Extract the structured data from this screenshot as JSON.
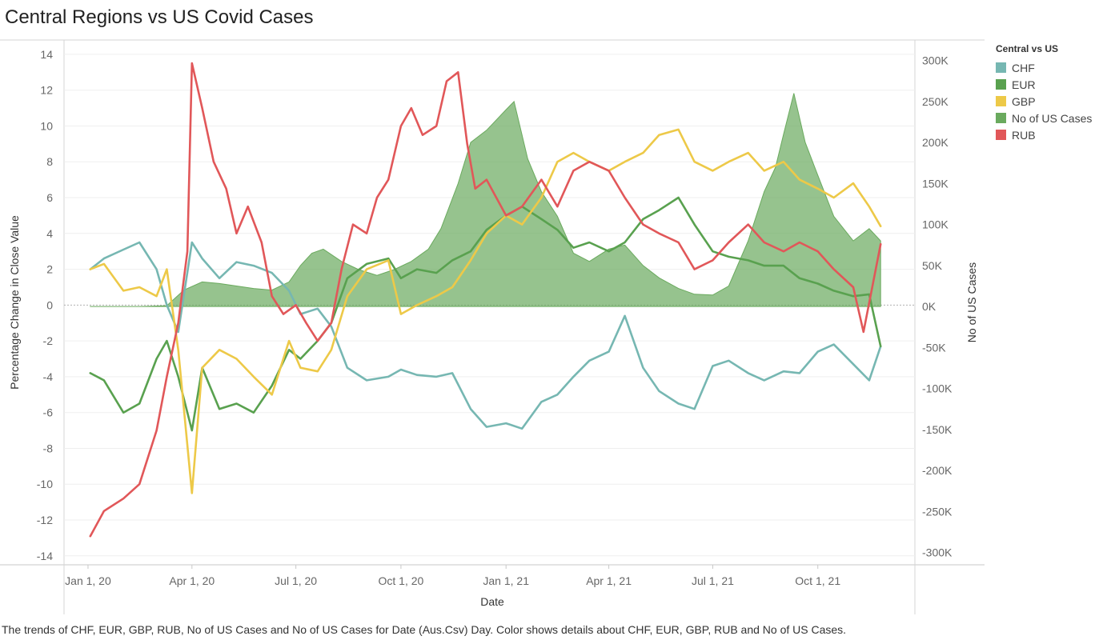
{
  "title": "Central Regions vs US Covid Cases",
  "caption": "The trends of CHF, EUR, GBP, RUB, No of US Cases and No of US Cases for Date (Aus.Csv) Day.  Color shows details about CHF, EUR, GBP, RUB and No of US Cases.",
  "legend": {
    "title": "Central vs US",
    "items": [
      {
        "label": "CHF",
        "color": "#76b7b2"
      },
      {
        "label": "EUR",
        "color": "#59a14f"
      },
      {
        "label": "GBP",
        "color": "#edc948"
      },
      {
        "label": "No of US Cases",
        "color": "#6aaa5e"
      },
      {
        "label": "RUB",
        "color": "#e15759"
      }
    ]
  },
  "chart_data": {
    "type": "line",
    "xlabel": "Date",
    "ylabel": "Percentage Change in Close Value",
    "y2label": "No of US Cases",
    "x_ticks": [
      "Jan 1, 20",
      "Apr 1, 20",
      "Jul 1, 20",
      "Oct 1, 20",
      "Jan 1, 21",
      "Apr 1, 21",
      "Jul 1, 21",
      "Oct 1, 21"
    ],
    "y_ticks": [
      "14",
      "12",
      "10",
      "8",
      "6",
      "4",
      "2",
      "0",
      "-2",
      "-4",
      "-6",
      "-8",
      "-10",
      "-12",
      "-14"
    ],
    "y2_ticks": [
      "300K",
      "250K",
      "200K",
      "150K",
      "100K",
      "50K",
      "0K",
      "-50K",
      "-100K",
      "-150K",
      "-200K",
      "-250K",
      "-300K"
    ],
    "ylim": [
      -14.5,
      14.8
    ],
    "y2lim": [
      -315000,
      325000
    ],
    "xlim": [
      "2019-12-11",
      "2021-12-25"
    ],
    "series": [
      {
        "name": "CHF",
        "axis": "left",
        "color": "#76b7b2",
        "x": [
          "2020-01-03",
          "2020-01-15",
          "2020-02-01",
          "2020-02-15",
          "2020-03-01",
          "2020-03-10",
          "2020-03-20",
          "2020-04-01",
          "2020-04-10",
          "2020-04-25",
          "2020-05-10",
          "2020-05-25",
          "2020-06-10",
          "2020-06-25",
          "2020-07-05",
          "2020-07-20",
          "2020-08-01",
          "2020-08-15",
          "2020-09-01",
          "2020-09-20",
          "2020-10-01",
          "2020-10-15",
          "2020-11-01",
          "2020-11-15",
          "2020-12-01",
          "2020-12-15",
          "2021-01-01",
          "2021-01-15",
          "2021-02-01",
          "2021-02-15",
          "2021-03-01",
          "2021-03-15",
          "2021-04-01",
          "2021-04-15",
          "2021-05-01",
          "2021-05-15",
          "2021-06-01",
          "2021-06-15",
          "2021-07-01",
          "2021-07-15",
          "2021-08-01",
          "2021-08-15",
          "2021-09-01",
          "2021-09-15",
          "2021-10-01",
          "2021-10-15",
          "2021-11-01",
          "2021-11-15",
          "2021-11-25"
        ],
        "values": [
          2.0,
          2.6,
          3.1,
          3.5,
          2.0,
          0.0,
          -1.5,
          3.5,
          2.6,
          1.5,
          2.4,
          2.2,
          1.8,
          0.8,
          -0.5,
          -0.2,
          -1.2,
          -3.5,
          -4.2,
          -4.0,
          -3.6,
          -3.9,
          -4.0,
          -3.8,
          -5.8,
          -6.8,
          -6.6,
          -6.9,
          -5.4,
          -5.0,
          -4.0,
          -3.1,
          -2.6,
          -0.6,
          -3.5,
          -4.8,
          -5.5,
          -5.8,
          -3.4,
          -3.1,
          -3.8,
          -4.2,
          -3.7,
          -3.8,
          -2.6,
          -2.2,
          -3.3,
          -4.2,
          -2.3
        ]
      },
      {
        "name": "EUR",
        "axis": "left",
        "color": "#59a14f",
        "x": [
          "2020-01-03",
          "2020-01-15",
          "2020-02-01",
          "2020-02-15",
          "2020-03-01",
          "2020-03-10",
          "2020-03-20",
          "2020-04-01",
          "2020-04-10",
          "2020-04-25",
          "2020-05-10",
          "2020-05-25",
          "2020-06-10",
          "2020-06-25",
          "2020-07-05",
          "2020-07-20",
          "2020-08-01",
          "2020-08-15",
          "2020-09-01",
          "2020-09-20",
          "2020-10-01",
          "2020-10-15",
          "2020-11-01",
          "2020-11-15",
          "2020-12-01",
          "2020-12-15",
          "2021-01-01",
          "2021-01-15",
          "2021-02-01",
          "2021-02-15",
          "2021-03-01",
          "2021-03-15",
          "2021-04-01",
          "2021-04-15",
          "2021-05-01",
          "2021-05-15",
          "2021-06-01",
          "2021-06-15",
          "2021-07-01",
          "2021-07-15",
          "2021-08-01",
          "2021-08-15",
          "2021-09-01",
          "2021-09-15",
          "2021-10-01",
          "2021-10-15",
          "2021-11-01",
          "2021-11-15",
          "2021-11-25"
        ],
        "values": [
          -3.8,
          -4.2,
          -6.0,
          -5.5,
          -3.0,
          -2.0,
          -4.0,
          -7.0,
          -3.5,
          -5.8,
          -5.5,
          -6.0,
          -4.5,
          -2.5,
          -3.0,
          -2.0,
          -1.0,
          1.5,
          2.3,
          2.6,
          1.5,
          2.0,
          1.8,
          2.5,
          3.0,
          4.2,
          5.0,
          5.5,
          4.8,
          4.2,
          3.2,
          3.5,
          3.0,
          3.5,
          4.8,
          5.3,
          6.0,
          4.5,
          3.0,
          2.7,
          2.5,
          2.2,
          2.2,
          1.5,
          1.2,
          0.8,
          0.5,
          0.6,
          -2.3
        ]
      },
      {
        "name": "GBP",
        "axis": "left",
        "color": "#edc948",
        "x": [
          "2020-01-03",
          "2020-01-15",
          "2020-02-01",
          "2020-02-15",
          "2020-03-01",
          "2020-03-10",
          "2020-03-20",
          "2020-04-01",
          "2020-04-10",
          "2020-04-25",
          "2020-05-10",
          "2020-05-25",
          "2020-06-10",
          "2020-06-25",
          "2020-07-05",
          "2020-07-20",
          "2020-08-01",
          "2020-08-15",
          "2020-09-01",
          "2020-09-20",
          "2020-10-01",
          "2020-10-15",
          "2020-11-01",
          "2020-11-15",
          "2020-12-01",
          "2020-12-15",
          "2021-01-01",
          "2021-01-15",
          "2021-02-01",
          "2021-02-15",
          "2021-03-01",
          "2021-03-15",
          "2021-04-01",
          "2021-04-15",
          "2021-05-01",
          "2021-05-15",
          "2021-06-01",
          "2021-06-15",
          "2021-07-01",
          "2021-07-15",
          "2021-08-01",
          "2021-08-15",
          "2021-09-01",
          "2021-09-15",
          "2021-10-01",
          "2021-10-15",
          "2021-11-01",
          "2021-11-15",
          "2021-11-25"
        ],
        "values": [
          2.0,
          2.3,
          0.8,
          1.0,
          0.5,
          2.0,
          -2.5,
          -10.5,
          -3.5,
          -2.5,
          -3.0,
          -4.0,
          -5.0,
          -2.0,
          -3.5,
          -3.7,
          -2.5,
          0.5,
          2.0,
          2.5,
          -0.5,
          0.0,
          0.5,
          1.0,
          2.5,
          4.0,
          5.0,
          4.5,
          6.0,
          8.0,
          8.5,
          8.0,
          7.5,
          8.0,
          8.5,
          9.5,
          9.8,
          8.0,
          7.5,
          8.0,
          8.5,
          7.5,
          8.0,
          7.0,
          6.5,
          6.0,
          6.8,
          5.5,
          4.4
        ]
      },
      {
        "name": "RUB",
        "axis": "left",
        "color": "#e15759",
        "x": [
          "2020-01-03",
          "2020-01-15",
          "2020-02-01",
          "2020-02-15",
          "2020-03-01",
          "2020-03-10",
          "2020-03-20",
          "2020-03-28",
          "2020-04-01",
          "2020-04-10",
          "2020-04-20",
          "2020-05-01",
          "2020-05-10",
          "2020-05-20",
          "2020-06-01",
          "2020-06-10",
          "2020-06-20",
          "2020-07-01",
          "2020-07-10",
          "2020-07-20",
          "2020-08-01",
          "2020-08-10",
          "2020-08-20",
          "2020-09-01",
          "2020-09-10",
          "2020-09-20",
          "2020-10-01",
          "2020-10-10",
          "2020-10-20",
          "2020-11-01",
          "2020-11-10",
          "2020-11-20",
          "2020-11-28",
          "2020-12-05",
          "2020-12-15",
          "2021-01-01",
          "2021-01-15",
          "2021-02-01",
          "2021-02-15",
          "2021-03-01",
          "2021-03-15",
          "2021-04-01",
          "2021-04-15",
          "2021-05-01",
          "2021-05-15",
          "2021-06-01",
          "2021-06-15",
          "2021-07-01",
          "2021-07-15",
          "2021-08-01",
          "2021-08-15",
          "2021-09-01",
          "2021-09-15",
          "2021-10-01",
          "2021-10-15",
          "2021-11-01",
          "2021-11-10",
          "2021-11-25"
        ],
        "values": [
          -12.9,
          -11.5,
          -10.8,
          -10.0,
          -7.0,
          -4.0,
          -1.0,
          3.0,
          13.5,
          11.0,
          8.0,
          6.5,
          4.0,
          5.5,
          3.5,
          0.5,
          -0.5,
          0.0,
          -1.0,
          -2.0,
          -1.0,
          2.0,
          4.5,
          4.0,
          6.0,
          7.0,
          10.0,
          11.0,
          9.5,
          10.0,
          12.5,
          13.0,
          9.0,
          6.5,
          7.0,
          5.0,
          5.5,
          7.0,
          5.5,
          7.5,
          8.0,
          7.5,
          6.0,
          4.5,
          4.0,
          3.5,
          2.0,
          2.5,
          3.5,
          4.5,
          3.5,
          3.0,
          3.5,
          3.0,
          2.0,
          1.0,
          -1.5,
          3.4
        ]
      },
      {
        "name": "No of US Cases",
        "axis": "right",
        "type": "area",
        "color": "#6aaa5e",
        "x": [
          "2020-01-03",
          "2020-02-15",
          "2020-03-10",
          "2020-03-25",
          "2020-04-10",
          "2020-04-25",
          "2020-05-10",
          "2020-05-25",
          "2020-06-10",
          "2020-06-25",
          "2020-07-05",
          "2020-07-15",
          "2020-07-25",
          "2020-08-10",
          "2020-08-25",
          "2020-09-10",
          "2020-09-25",
          "2020-10-10",
          "2020-10-25",
          "2020-11-05",
          "2020-11-20",
          "2020-12-01",
          "2020-12-15",
          "2021-01-01",
          "2021-01-08",
          "2021-01-20",
          "2021-02-01",
          "2021-02-15",
          "2021-03-01",
          "2021-03-15",
          "2021-04-01",
          "2021-04-15",
          "2021-05-01",
          "2021-05-15",
          "2021-06-01",
          "2021-06-15",
          "2021-07-01",
          "2021-07-15",
          "2021-08-01",
          "2021-08-15",
          "2021-08-25",
          "2021-09-01",
          "2021-09-10",
          "2021-09-20",
          "2021-10-01",
          "2021-10-15",
          "2021-11-01",
          "2021-11-15",
          "2021-11-25"
        ],
        "values": [
          0,
          0,
          1000,
          20000,
          30000,
          28000,
          25000,
          22000,
          20000,
          30000,
          50000,
          65000,
          70000,
          55000,
          45000,
          38000,
          45000,
          55000,
          70000,
          95000,
          150000,
          200000,
          215000,
          240000,
          250000,
          180000,
          140000,
          110000,
          65000,
          55000,
          70000,
          75000,
          50000,
          35000,
          22000,
          15000,
          14000,
          25000,
          80000,
          140000,
          170000,
          210000,
          260000,
          200000,
          160000,
          110000,
          80000,
          95000,
          80000
        ]
      }
    ]
  }
}
